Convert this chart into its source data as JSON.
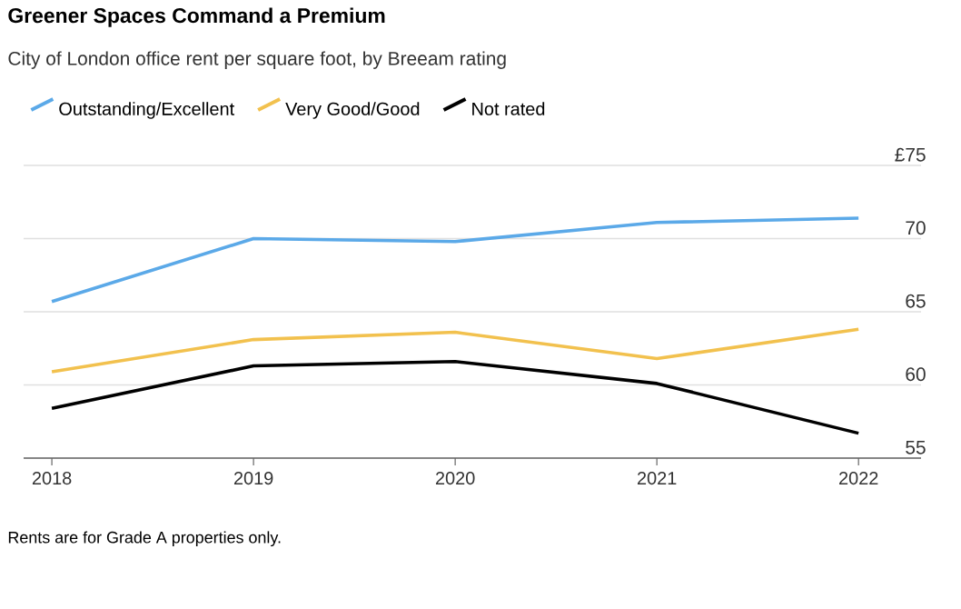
{
  "chart_data": {
    "type": "line",
    "title": "Greener Spaces Command a Premium",
    "subtitle": "City of London office rent per square foot, by Breeam rating",
    "categories": [
      "2018",
      "2019",
      "2020",
      "2021",
      "2022"
    ],
    "series": [
      {
        "name": "Outstanding/Excellent",
        "color": "#5ba9e8",
        "values": [
          65.7,
          70.0,
          69.8,
          71.1,
          71.4
        ]
      },
      {
        "name": "Very Good/Good",
        "color": "#f2c14e",
        "values": [
          60.9,
          63.1,
          63.6,
          61.8,
          63.8
        ]
      },
      {
        "name": "Not rated",
        "color": "#000000",
        "values": [
          58.4,
          61.3,
          61.6,
          60.1,
          56.7
        ]
      }
    ],
    "ylim": [
      55,
      75
    ],
    "yticks": [
      55,
      60,
      65,
      70,
      {
        "value": 75,
        "label": "£75"
      }
    ],
    "grid": "y",
    "legend": "top left",
    "annotations": [
      "Rents are for Grade A properties only."
    ]
  }
}
